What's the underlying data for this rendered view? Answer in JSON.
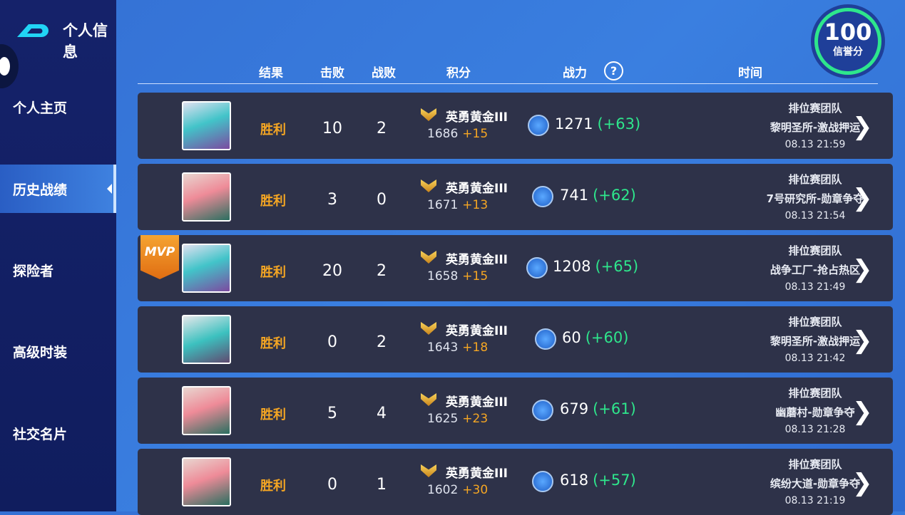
{
  "header": {
    "title": "个人信息",
    "credit_score": "100",
    "credit_label": "信誉分"
  },
  "sidebar": {
    "items": [
      {
        "label": "个人主页"
      },
      {
        "label": "历史战绩"
      },
      {
        "label": "探险者"
      },
      {
        "label": "高级时装"
      },
      {
        "label": "社交名片"
      }
    ],
    "active": 1
  },
  "columns": {
    "result": "结果",
    "kills": "击败",
    "deaths": "战败",
    "score": "积分",
    "power": "战力",
    "power_help": "?",
    "time": "时间"
  },
  "mvp_label": "MVP",
  "matches": [
    {
      "result": "胜利",
      "kills": "10",
      "deaths": "2",
      "rank": "英勇黄金III",
      "score": "1686",
      "score_delta": "+15",
      "power": "1271",
      "power_delta": "(+63)",
      "mode": "排位赛团队",
      "map": "黎明圣所-激战押运",
      "time": "08.13 21:59",
      "mvp": false,
      "avatar": "a0"
    },
    {
      "result": "胜利",
      "kills": "3",
      "deaths": "0",
      "rank": "英勇黄金III",
      "score": "1671",
      "score_delta": "+13",
      "power": "741",
      "power_delta": "(+62)",
      "mode": "排位赛团队",
      "map": "7号研究所-勋章争夺",
      "time": "08.13 21:54",
      "mvp": false,
      "avatar": "a1"
    },
    {
      "result": "胜利",
      "kills": "20",
      "deaths": "2",
      "rank": "英勇黄金III",
      "score": "1658",
      "score_delta": "+15",
      "power": "1208",
      "power_delta": "(+65)",
      "mode": "排位赛团队",
      "map": "战争工厂-抢占热区",
      "time": "08.13 21:49",
      "mvp": true,
      "avatar": "a0"
    },
    {
      "result": "胜利",
      "kills": "0",
      "deaths": "2",
      "rank": "英勇黄金III",
      "score": "1643",
      "score_delta": "+18",
      "power": "60",
      "power_delta": "(+60)",
      "mode": "排位赛团队",
      "map": "黎明圣所-激战押运",
      "time": "08.13 21:42",
      "mvp": false,
      "avatar": "a2"
    },
    {
      "result": "胜利",
      "kills": "5",
      "deaths": "4",
      "rank": "英勇黄金III",
      "score": "1625",
      "score_delta": "+23",
      "power": "679",
      "power_delta": "(+61)",
      "mode": "排位赛团队",
      "map": "幽蘑村-勋章争夺",
      "time": "08.13 21:28",
      "mvp": false,
      "avatar": "a1"
    },
    {
      "result": "胜利",
      "kills": "0",
      "deaths": "1",
      "rank": "英勇黄金III",
      "score": "1602",
      "score_delta": "+30",
      "power": "618",
      "power_delta": "(+57)",
      "mode": "排位赛团队",
      "map": "缤纷大道-勋章争夺",
      "time": "08.13 21:19",
      "mvp": false,
      "avatar": "a1"
    }
  ],
  "colors": {
    "win": "#f5a623",
    "power_delta": "#2ee68c",
    "credit_ring": "#2ee68c",
    "row_bg": "#2e3249"
  }
}
